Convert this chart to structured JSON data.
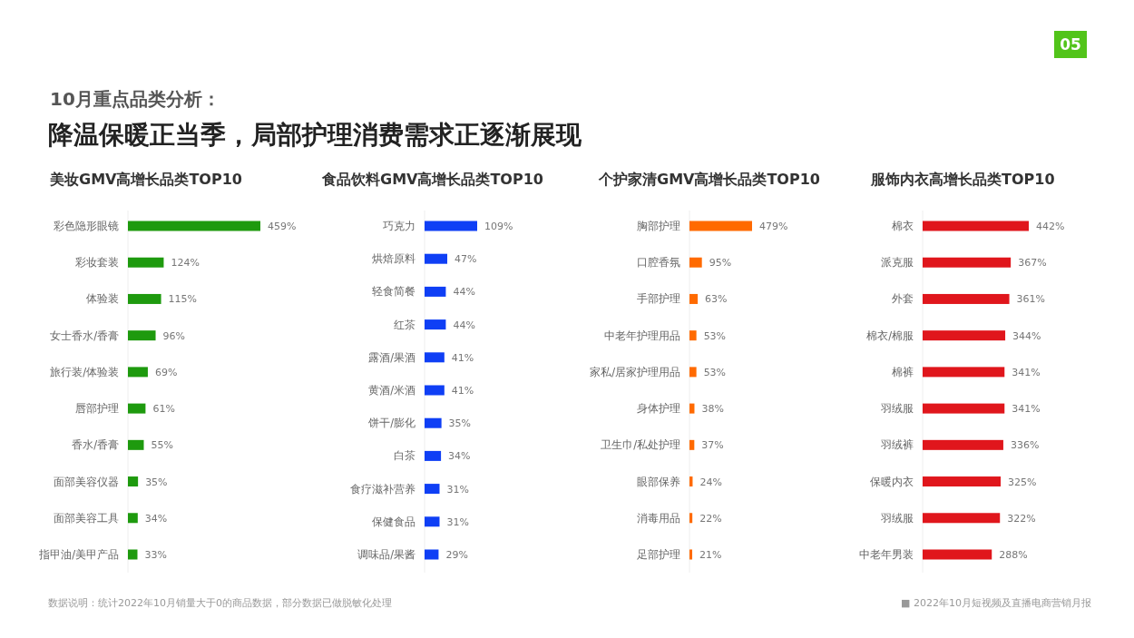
{
  "chart_data": [
    {
      "type": "bar",
      "orientation": "horizontal",
      "title": "美妆GMV高增长品类TOP10",
      "categories": [
        "彩色隐形眼镜",
        "彩妆套装",
        "体验装",
        "女士香水/香膏",
        "旅行装/体验装",
        "唇部护理",
        "香水/香膏",
        "面部美容仪器",
        "面部美容工具",
        "指甲油/美甲产品"
      ],
      "values": [
        459,
        124,
        115,
        96,
        69,
        61,
        55,
        35,
        34,
        33
      ],
      "value_labels": [
        "459%",
        "124%",
        "115%",
        "96%",
        "69%",
        "61%",
        "55%",
        "35%",
        "34%",
        "33%"
      ],
      "color": "#1e9a0e",
      "tick_labels": "y",
      "annotations": [
        "10月重点品类分析：",
        "降温保暖正当季，局部护理消费需求正逐渐展现",
        "数据说明：统计2022年10月销量大于0的商品数据，部分数据已做脱敏化处理",
        "■ 2022年10月短视频及直播电商营销月报",
        "05"
      ]
    },
    {
      "type": "bar",
      "orientation": "horizontal",
      "title": "食品饮料GMV高增长品类TOP10",
      "categories": [
        "巧克力",
        "烘焙原料",
        "轻食简餐",
        "红茶",
        "露酒/果酒",
        "黄酒/米酒",
        "饼干/膨化",
        "白茶",
        "食疗滋补营养",
        "保健食品",
        "调味品/果酱"
      ],
      "values": [
        109,
        47,
        44,
        44,
        41,
        41,
        35,
        34,
        31,
        31,
        29
      ],
      "value_labels": [
        "109%",
        "47%",
        "44%",
        "44%",
        "41%",
        "41%",
        "35%",
        "34%",
        "31%",
        "31%",
        "29%"
      ],
      "color": "#0f3ff5",
      "tick_labels": "y"
    },
    {
      "type": "bar",
      "orientation": "horizontal",
      "title": "个护家清GMV高增长品类TOP10",
      "categories": [
        "胸部护理",
        "口腔香氛",
        "手部护理",
        "中老年护理用品",
        "家私/居家护理用品",
        "身体护理",
        "卫生巾/私处护理",
        "眼部保养",
        "消毒用品",
        "足部护理"
      ],
      "values": [
        479,
        95,
        63,
        53,
        53,
        38,
        37,
        24,
        22,
        21
      ],
      "value_labels": [
        "479%",
        "95%",
        "63%",
        "53%",
        "53%",
        "38%",
        "37%",
        "24%",
        "22%",
        "21%"
      ],
      "color": "#ff6a00",
      "tick_labels": "y"
    },
    {
      "type": "bar",
      "orientation": "horizontal",
      "title": "服饰内衣高增长品类TOP10",
      "categories": [
        "棉衣",
        "派克服",
        "外套",
        "棉衣/棉服",
        "棉裤",
        "羽绒服",
        "羽绒裤",
        "保暖内衣",
        "羽绒服",
        "中老年男装"
      ],
      "values": [
        442,
        367,
        361,
        344,
        341,
        341,
        336,
        325,
        322,
        288
      ],
      "value_labels": [
        "442%",
        "367%",
        "361%",
        "344%",
        "341%",
        "341%",
        "336%",
        "325%",
        "322%",
        "288%"
      ],
      "color": "#e0161c",
      "tick_labels": "y"
    }
  ]
}
